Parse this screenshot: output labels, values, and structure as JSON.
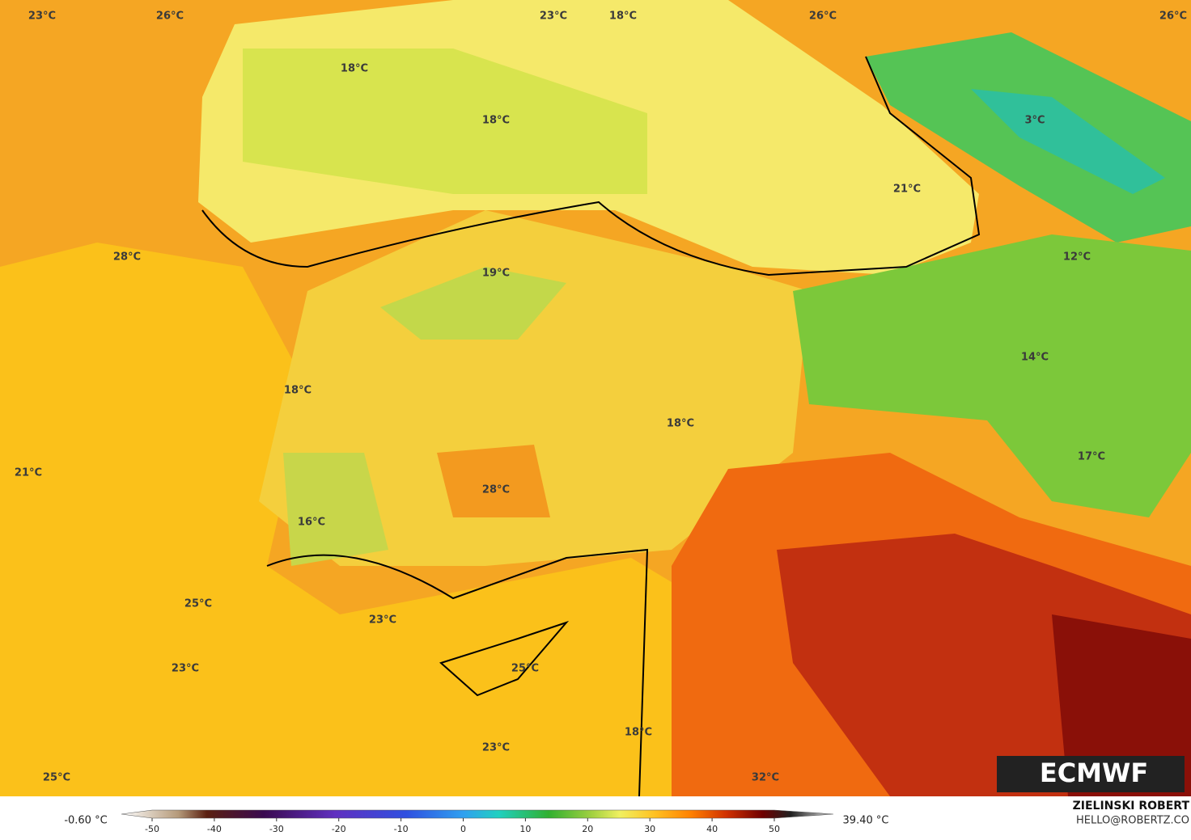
{
  "map_labels": [
    "23°C",
    "26°C",
    "23°C",
    "18°C",
    "26°C",
    "26°C",
    "18°C",
    "18°C",
    "3°C",
    "21°C",
    "28°C",
    "19°C",
    "12°C",
    "14°C",
    "18°C",
    "18°C",
    "21°C",
    "17°C",
    "28°C",
    "16°C",
    "25°C",
    "23°C",
    "23°C",
    "25°C",
    "18°C",
    "23°C",
    "25°C",
    "32°C"
  ],
  "colorbar": {
    "min_label": "-0.60 °C",
    "max_label": "39.40 °C",
    "range": [
      -50,
      50
    ],
    "ticks": [
      -50,
      -40,
      -30,
      -20,
      -10,
      0,
      10,
      20,
      30,
      40,
      50
    ]
  },
  "logo": "ECMWF",
  "credit": {
    "name": "ZIELINSKI ROBERT",
    "email": "HELLO@ROBERTZ.CO"
  }
}
